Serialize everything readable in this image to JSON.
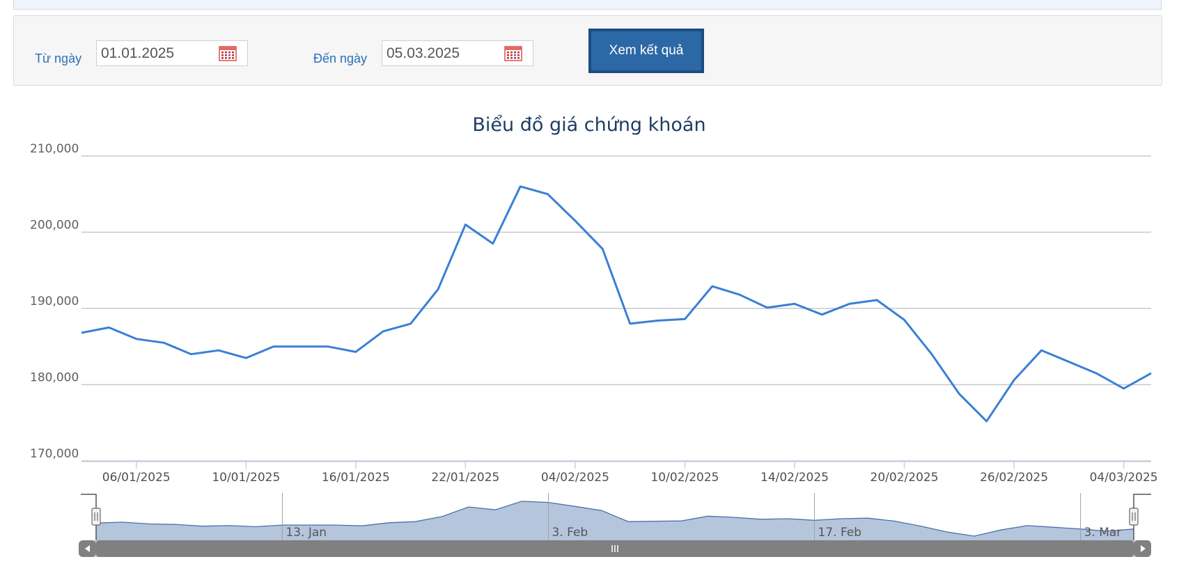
{
  "filter": {
    "from_label": "Từ ngày",
    "from_value": "01.01.2025",
    "to_label": "Đến ngày",
    "to_value": "05.03.2025",
    "submit_label": "Xem kết quả"
  },
  "colors": {
    "line": "#3a7fd5",
    "navigator_fill": "#b5c5dc",
    "navigator_line": "#4a72a8",
    "grid": "#c8c8c8",
    "button": "#2c68a6"
  },
  "icons": {
    "calendar": "calendar-icon",
    "navigator_left": "arrow-left-icon",
    "navigator_right": "arrow-right-icon",
    "scrollbar_grip": "grip-icon"
  },
  "chart_data": {
    "type": "line",
    "title": "Biểu đồ giá chứng khoán",
    "xlabel": "",
    "ylabel": "",
    "ylim": [
      170000,
      210000
    ],
    "grid": true,
    "y_ticks": [
      "210,000",
      "200,000",
      "190,000",
      "180,000",
      "170,000"
    ],
    "x_ticks": [
      "06/01/2025",
      "10/01/2025",
      "16/01/2025",
      "22/01/2025",
      "04/02/2025",
      "10/02/2025",
      "14/02/2025",
      "20/02/2025",
      "26/02/2025",
      "04/03/2025"
    ],
    "x": [
      "02/01/2025",
      "03/01/2025",
      "06/01/2025",
      "07/01/2025",
      "08/01/2025",
      "09/01/2025",
      "10/01/2025",
      "13/01/2025",
      "14/01/2025",
      "15/01/2025",
      "16/01/2025",
      "17/01/2025",
      "20/01/2025",
      "21/01/2025",
      "22/01/2025",
      "23/01/2025",
      "24/01/2025",
      "03/02/2025",
      "04/02/2025",
      "05/02/2025",
      "06/02/2025",
      "07/02/2025",
      "10/02/2025",
      "11/02/2025",
      "12/02/2025",
      "13/02/2025",
      "14/02/2025",
      "17/02/2025",
      "18/02/2025",
      "19/02/2025",
      "20/02/2025",
      "21/02/2025",
      "24/02/2025",
      "25/02/2025",
      "26/02/2025",
      "27/02/2025",
      "28/02/2025",
      "03/03/2025",
      "04/03/2025",
      "05/03/2025"
    ],
    "series": [
      {
        "values": [
          186800,
          187500,
          186000,
          185500,
          184000,
          184500,
          183500,
          185000,
          185000,
          185000,
          184300,
          187000,
          188000,
          192500,
          201000,
          198500,
          206000,
          205000,
          201500,
          197800,
          188000,
          188400,
          188600,
          192900,
          191800,
          190100,
          190600,
          189200,
          190600,
          191100,
          188500,
          184000,
          178800,
          175200,
          180600,
          184500,
          183000,
          181500,
          179500,
          181500
        ]
      }
    ],
    "navigator": {
      "ticks": [
        "13. Jan",
        "3. Feb",
        "17. Feb",
        "3. Mar"
      ]
    }
  }
}
